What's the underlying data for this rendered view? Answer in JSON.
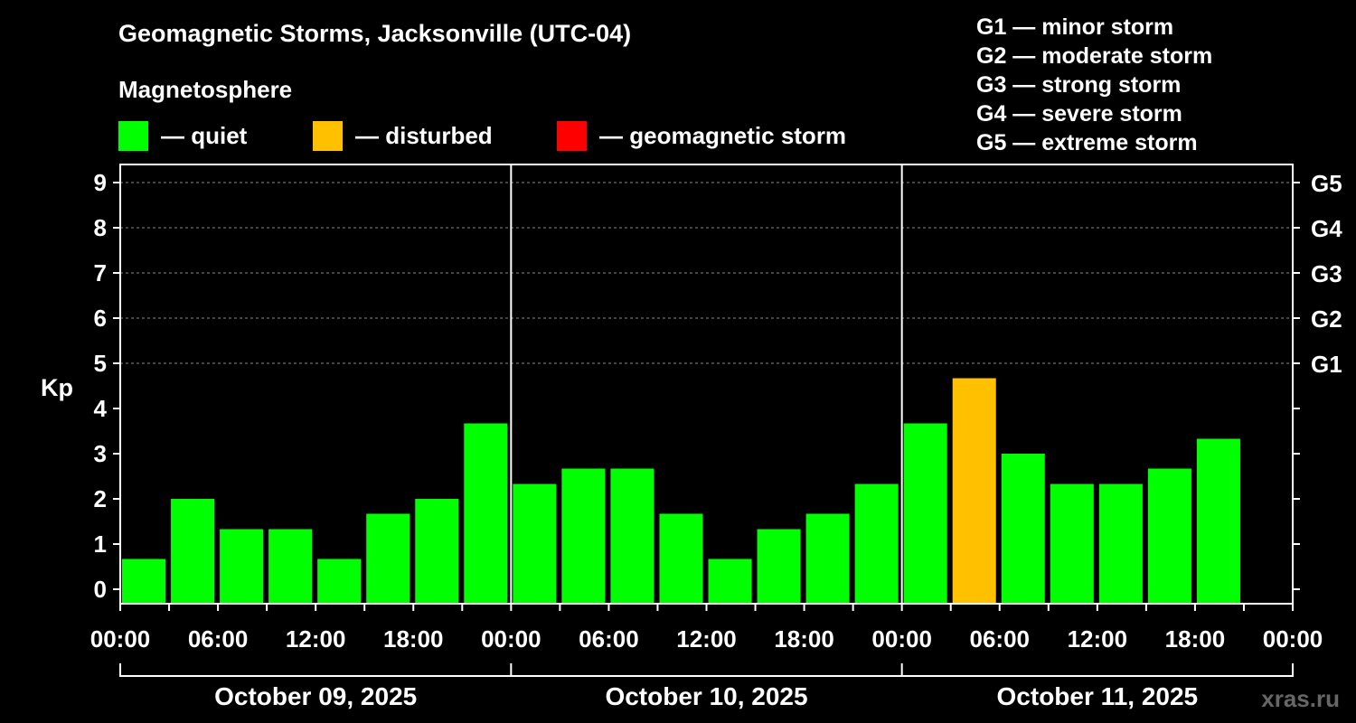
{
  "title": "Geomagnetic Storms, Jacksonville (UTC-04)",
  "magnetosphere": {
    "title": "Magnetosphere",
    "legend": [
      {
        "label": "— quiet",
        "color": "#00ff00"
      },
      {
        "label": "— disturbed",
        "color": "#ffc000"
      },
      {
        "label": "— geomagnetic storm",
        "color": "#ff0000"
      }
    ]
  },
  "g_scale": [
    "G1 — minor storm",
    "G2 — moderate storm",
    "G3 — strong storm",
    "G4 — severe storm",
    "G5 — extreme storm"
  ],
  "watermark": "xras.ru",
  "chart_data": {
    "type": "bar",
    "ylabel": "Kp",
    "ylim": [
      0,
      9
    ],
    "yticks": [
      "0",
      "1",
      "2",
      "3",
      "4",
      "5",
      "6",
      "7",
      "8",
      "9"
    ],
    "right_ticks": [
      {
        "kp": 5,
        "label": "G1"
      },
      {
        "kp": 6,
        "label": "G2"
      },
      {
        "kp": 7,
        "label": "G3"
      },
      {
        "kp": 8,
        "label": "G4"
      },
      {
        "kp": 9,
        "label": "G5"
      }
    ],
    "xtick_labels": [
      "00:00",
      "06:00",
      "12:00",
      "18:00",
      "00:00",
      "06:00",
      "12:00",
      "18:00",
      "00:00",
      "06:00",
      "12:00",
      "18:00",
      "00:00"
    ],
    "days": [
      "October 09, 2025",
      "October 10, 2025",
      "October 11, 2025"
    ],
    "grid": true,
    "x_unit": "hours",
    "bar_period_hours": 3,
    "total_hours": 72,
    "values": [
      0.67,
      2.0,
      1.33,
      1.33,
      0.67,
      1.67,
      2.0,
      3.67,
      2.33,
      2.67,
      2.67,
      1.67,
      0.67,
      1.33,
      1.67,
      2.33,
      3.67,
      4.67,
      3.0,
      2.33,
      2.33,
      2.67,
      3.33
    ],
    "colors": [
      "#00ff00",
      "#00ff00",
      "#00ff00",
      "#00ff00",
      "#00ff00",
      "#00ff00",
      "#00ff00",
      "#00ff00",
      "#00ff00",
      "#00ff00",
      "#00ff00",
      "#00ff00",
      "#00ff00",
      "#00ff00",
      "#00ff00",
      "#00ff00",
      "#00ff00",
      "#ffc000",
      "#00ff00",
      "#00ff00",
      "#00ff00",
      "#00ff00",
      "#00ff00"
    ]
  }
}
